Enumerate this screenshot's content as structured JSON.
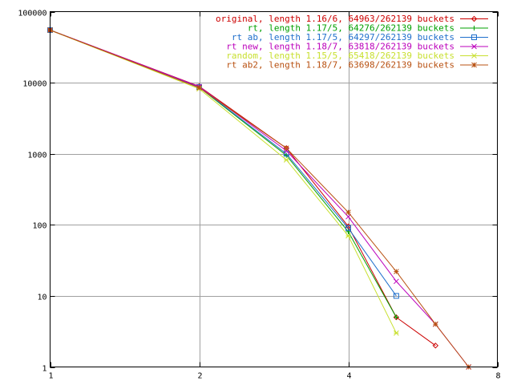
{
  "chart_data": {
    "type": "line",
    "title": "",
    "xlabel": "",
    "ylabel": "",
    "x_scale": "log2",
    "y_scale": "log10",
    "xlim": [
      1,
      8
    ],
    "ylim": [
      1,
      100000
    ],
    "grid": true,
    "legend_position": "top-right",
    "x_ticks": [
      {
        "value": 1,
        "label": "1"
      },
      {
        "value": 2,
        "label": "2"
      },
      {
        "value": 4,
        "label": "4"
      },
      {
        "value": 8,
        "label": "8"
      }
    ],
    "y_ticks": [
      {
        "value": 1,
        "label": "1"
      },
      {
        "value": 10,
        "label": "10"
      },
      {
        "value": 100,
        "label": "100"
      },
      {
        "value": 1000,
        "label": "1000"
      },
      {
        "value": 10000,
        "label": "10000"
      },
      {
        "value": 100000,
        "label": "100000"
      }
    ],
    "series": [
      {
        "name": "original, length 1.16/6, 64963/262139 buckets",
        "color": "#cc0000",
        "marker": "diamond",
        "x": [
          1,
          2,
          3,
          4,
          5,
          6
        ],
        "y": [
          55000,
          8900,
          1200,
          95,
          5,
          2
        ]
      },
      {
        "name": "rt, length 1.17/5, 64276/262139 buckets",
        "color": "#00a000",
        "marker": "plus",
        "x": [
          1,
          2,
          3,
          4,
          5
        ],
        "y": [
          55000,
          8600,
          950,
          80,
          5
        ]
      },
      {
        "name": "rt ab, length 1.17/5, 64297/262139 buckets",
        "color": "#1f6fcc",
        "marker": "square",
        "x": [
          1,
          2,
          3,
          4,
          5
        ],
        "y": [
          55000,
          8700,
          1000,
          90,
          10
        ]
      },
      {
        "name": "rt new, length 1.18/7, 63818/262139 buckets",
        "color": "#bb00bb",
        "marker": "x",
        "x": [
          1,
          2,
          3,
          4,
          5,
          6,
          7
        ],
        "y": [
          55000,
          8800,
          1100,
          130,
          16,
          4,
          1
        ]
      },
      {
        "name": "random, length 1.15/5, 65418/262139 buckets",
        "color": "#c8e030",
        "marker": "asterisk",
        "x": [
          1,
          2,
          3,
          4,
          5
        ],
        "y": [
          55000,
          8200,
          820,
          70,
          3
        ]
      },
      {
        "name": "rt ab2, length 1.18/7, 63698/262139 buckets",
        "color": "#b85010",
        "marker": "star",
        "x": [
          1,
          2,
          3,
          4,
          5,
          6,
          7
        ],
        "y": [
          55000,
          8500,
          1200,
          150,
          22,
          4,
          1
        ]
      }
    ]
  }
}
